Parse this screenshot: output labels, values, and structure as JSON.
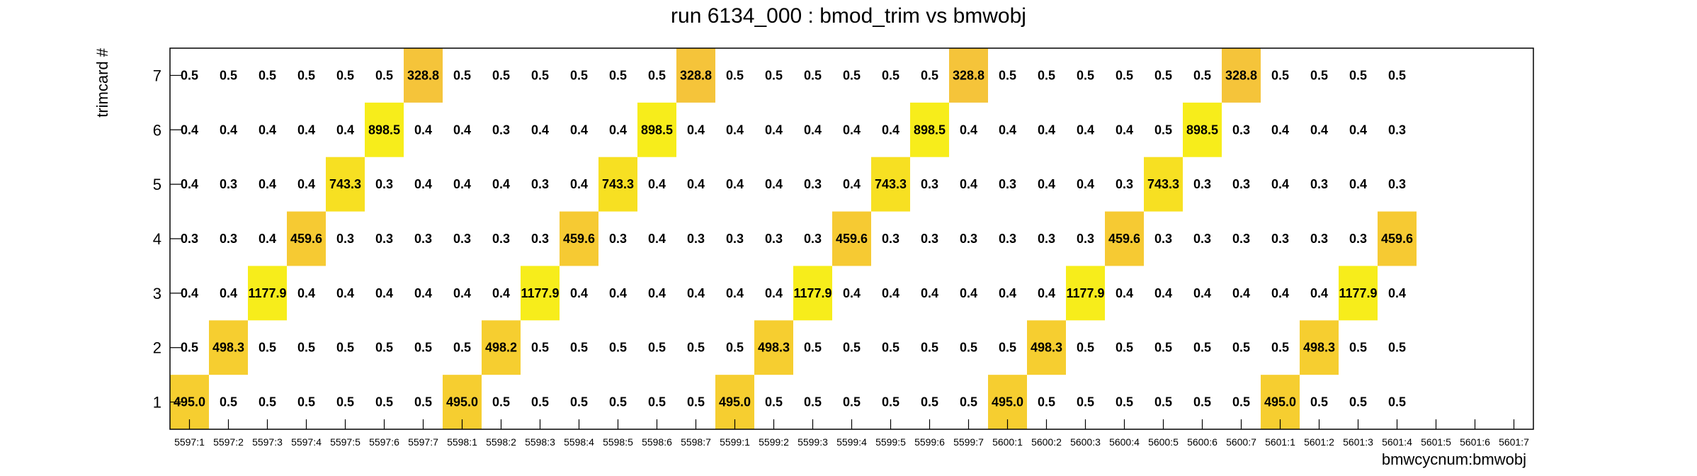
{
  "chart_data": {
    "type": "heatmap",
    "title": "run 6134_000 : bmod_trim vs bmwobj",
    "xlabel": "bmwcycnum:bmwobj",
    "ylabel": "trimcard #",
    "x_categories": [
      "5597:1",
      "5597:2",
      "5597:3",
      "5597:4",
      "5597:5",
      "5597:6",
      "5597:7",
      "5598:1",
      "5598:2",
      "5598:3",
      "5598:4",
      "5598:5",
      "5598:6",
      "5598:7",
      "5599:1",
      "5599:2",
      "5599:3",
      "5599:4",
      "5599:5",
      "5599:6",
      "5599:7",
      "5600:1",
      "5600:2",
      "5600:3",
      "5600:4",
      "5600:5",
      "5600:6",
      "5600:7",
      "5601:1",
      "5601:2",
      "5601:3",
      "5601:4",
      "5601:5",
      "5601:6",
      "5601:7"
    ],
    "y_categories": [
      "1",
      "2",
      "3",
      "4",
      "5",
      "6",
      "7"
    ],
    "rows": {
      "1": [
        "495.0",
        "0.5",
        "0.5",
        "0.5",
        "0.5",
        "0.5",
        "0.5",
        "495.0",
        "0.5",
        "0.5",
        "0.5",
        "0.5",
        "0.5",
        "0.5",
        "495.0",
        "0.5",
        "0.5",
        "0.5",
        "0.5",
        "0.5",
        "0.5",
        "495.0",
        "0.5",
        "0.5",
        "0.5",
        "0.5",
        "0.5",
        "0.5",
        "495.0",
        "0.5",
        "0.5",
        "0.5",
        "",
        "",
        ""
      ],
      "2": [
        "0.5",
        "498.3",
        "0.5",
        "0.5",
        "0.5",
        "0.5",
        "0.5",
        "0.5",
        "498.2",
        "0.5",
        "0.5",
        "0.5",
        "0.5",
        "0.5",
        "0.5",
        "498.3",
        "0.5",
        "0.5",
        "0.5",
        "0.5",
        "0.5",
        "0.5",
        "498.3",
        "0.5",
        "0.5",
        "0.5",
        "0.5",
        "0.5",
        "0.5",
        "498.3",
        "0.5",
        "0.5",
        "",
        "",
        ""
      ],
      "3": [
        "0.4",
        "0.4",
        "1177.9",
        "0.4",
        "0.4",
        "0.4",
        "0.4",
        "0.4",
        "0.4",
        "1177.9",
        "0.4",
        "0.4",
        "0.4",
        "0.4",
        "0.4",
        "0.4",
        "1177.9",
        "0.4",
        "0.4",
        "0.4",
        "0.4",
        "0.4",
        "0.4",
        "1177.9",
        "0.4",
        "0.4",
        "0.4",
        "0.4",
        "0.4",
        "0.4",
        "1177.9",
        "0.4",
        "",
        "",
        ""
      ],
      "4": [
        "0.3",
        "0.3",
        "0.4",
        "459.6",
        "0.3",
        "0.3",
        "0.3",
        "0.3",
        "0.3",
        "0.3",
        "459.6",
        "0.3",
        "0.4",
        "0.3",
        "0.3",
        "0.3",
        "0.3",
        "459.6",
        "0.3",
        "0.3",
        "0.3",
        "0.3",
        "0.3",
        "0.3",
        "459.6",
        "0.3",
        "0.3",
        "0.3",
        "0.3",
        "0.3",
        "0.3",
        "459.6",
        "",
        "",
        ""
      ],
      "5": [
        "0.4",
        "0.3",
        "0.4",
        "0.4",
        "743.3",
        "0.3",
        "0.4",
        "0.4",
        "0.4",
        "0.3",
        "0.4",
        "743.3",
        "0.4",
        "0.4",
        "0.4",
        "0.4",
        "0.3",
        "0.4",
        "743.3",
        "0.3",
        "0.4",
        "0.3",
        "0.4",
        "0.4",
        "0.3",
        "743.3",
        "0.3",
        "0.3",
        "0.4",
        "0.3",
        "0.4",
        "0.3",
        "",
        "",
        ""
      ],
      "6": [
        "0.4",
        "0.4",
        "0.4",
        "0.4",
        "0.4",
        "898.5",
        "0.4",
        "0.4",
        "0.3",
        "0.4",
        "0.4",
        "0.4",
        "898.5",
        "0.4",
        "0.4",
        "0.4",
        "0.4",
        "0.4",
        "0.4",
        "898.5",
        "0.4",
        "0.4",
        "0.4",
        "0.4",
        "0.4",
        "0.5",
        "898.5",
        "0.3",
        "0.4",
        "0.4",
        "0.4",
        "0.3",
        "",
        "",
        ""
      ],
      "7": [
        "0.5",
        "0.5",
        "0.5",
        "0.5",
        "0.5",
        "0.5",
        "328.8",
        "0.5",
        "0.5",
        "0.5",
        "0.5",
        "0.5",
        "0.5",
        "328.8",
        "0.5",
        "0.5",
        "0.5",
        "0.5",
        "0.5",
        "0.5",
        "328.8",
        "0.5",
        "0.5",
        "0.5",
        "0.5",
        "0.5",
        "0.5",
        "328.8",
        "0.5",
        "0.5",
        "0.5",
        "0.5",
        "",
        "",
        ""
      ]
    },
    "highlight_colors": {
      "1177.9": "#f7ed1b",
      "898.5": "#f7ed1b",
      "743.3": "#f7e022",
      "498.3": "#f6ce30",
      "498.2": "#f6ce30",
      "495.0": "#f6ce30",
      "459.6": "#f6ca33",
      "328.8": "#f5c43a"
    },
    "grid": false,
    "legend": "none"
  }
}
